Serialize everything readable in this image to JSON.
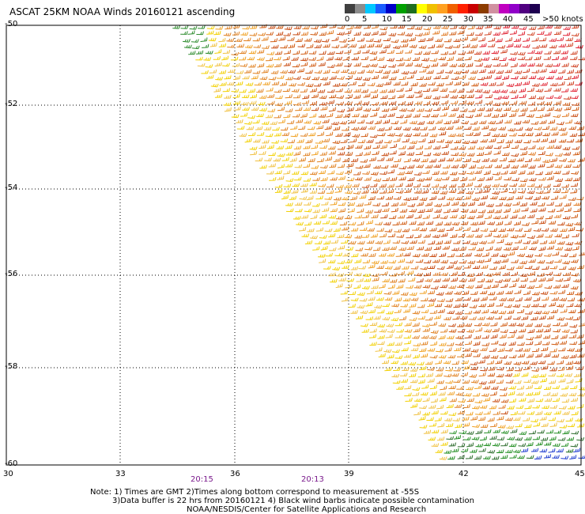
{
  "title": "ASCAT 25KM NOAA Winds 20160121 ascending",
  "legend": {
    "labels": [
      "0",
      "5",
      "10",
      "15",
      "20",
      "25",
      "30",
      "35",
      "40",
      "45",
      ">50 knots"
    ],
    "colors": [
      "#404040",
      "#8c8c8c",
      "#00c8ff",
      "#1a5cff",
      "#0000c8",
      "#00a000",
      "#1e6e1e",
      "#ffff00",
      "#f0c000",
      "#ffa020",
      "#f06000",
      "#ff2000",
      "#c80000",
      "#8c3c00",
      "#d090a0",
      "#c000c0",
      "#9000c8",
      "#500080",
      "#1e0050"
    ]
  },
  "axes": {
    "y_labels": [
      "-50",
      "-52",
      "-54",
      "-56",
      "-58",
      "-60"
    ],
    "x_labels": [
      "30",
      "33",
      "36",
      "39",
      "42",
      "45"
    ],
    "time_labels": [
      "20:15",
      "20:13"
    ]
  },
  "notes": [
    "Note: 1) Times are GMT 2)Times along bottom correspond to measurement at -55S",
    "3)Data buffer is 22 hrs from 20160121 4) Black wind barbs indicate possible contamination",
    "NOAA/NESDIS/Center for Satellite Applications and Research"
  ]
}
